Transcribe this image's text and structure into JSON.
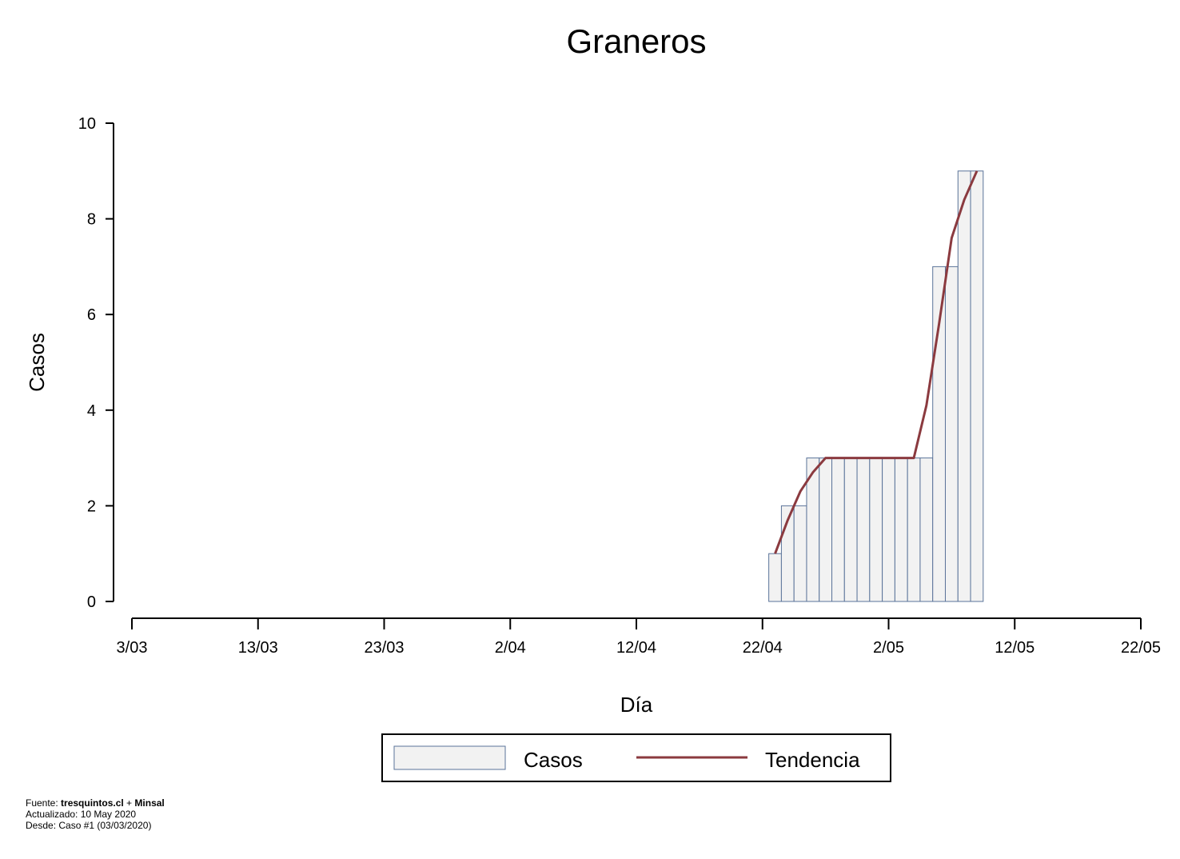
{
  "chart_data": {
    "type": "bar",
    "title": "Graneros",
    "xlabel": "Día",
    "ylabel": "Casos",
    "ylim": [
      0,
      10
    ],
    "y_ticks": [
      0,
      2,
      4,
      6,
      8,
      10
    ],
    "x_tick_labels": [
      "3/03",
      "13/03",
      "23/03",
      "2/04",
      "12/04",
      "22/04",
      "2/05",
      "12/05",
      "22/05"
    ],
    "x_range_dates": [
      "2020-03-03",
      "2020-05-22"
    ],
    "grid": false,
    "legend_position": "bottom",
    "dates": [
      "2020-04-23",
      "2020-04-24",
      "2020-04-25",
      "2020-04-26",
      "2020-04-27",
      "2020-04-28",
      "2020-04-29",
      "2020-04-30",
      "2020-05-01",
      "2020-05-02",
      "2020-05-03",
      "2020-05-04",
      "2020-05-05",
      "2020-05-06",
      "2020-05-07",
      "2020-05-08",
      "2020-05-09"
    ],
    "series": [
      {
        "name": "Casos",
        "kind": "bar",
        "color": "#f2f2f2",
        "edge": "#5a7399",
        "values": [
          1,
          2,
          2,
          3,
          3,
          3,
          3,
          3,
          3,
          3,
          3,
          3,
          3,
          7,
          7,
          9,
          9
        ]
      },
      {
        "name": "Tendencia",
        "kind": "line",
        "color": "#8b3a3f",
        "values": [
          1,
          1.7,
          2.3,
          2.7,
          3,
          3,
          3,
          3,
          3,
          3,
          3,
          3,
          4.1,
          5.8,
          7.6,
          8.4,
          9
        ]
      }
    ]
  },
  "footer": {
    "source_prefix": "Fuente: ",
    "source_bold": "tresquintos.cl",
    "source_plus": " + ",
    "source_bold2": "Minsal",
    "updated": "Actualizado: 10 May 2020",
    "since": "Desde: Caso #1  (03/03/2020)"
  }
}
